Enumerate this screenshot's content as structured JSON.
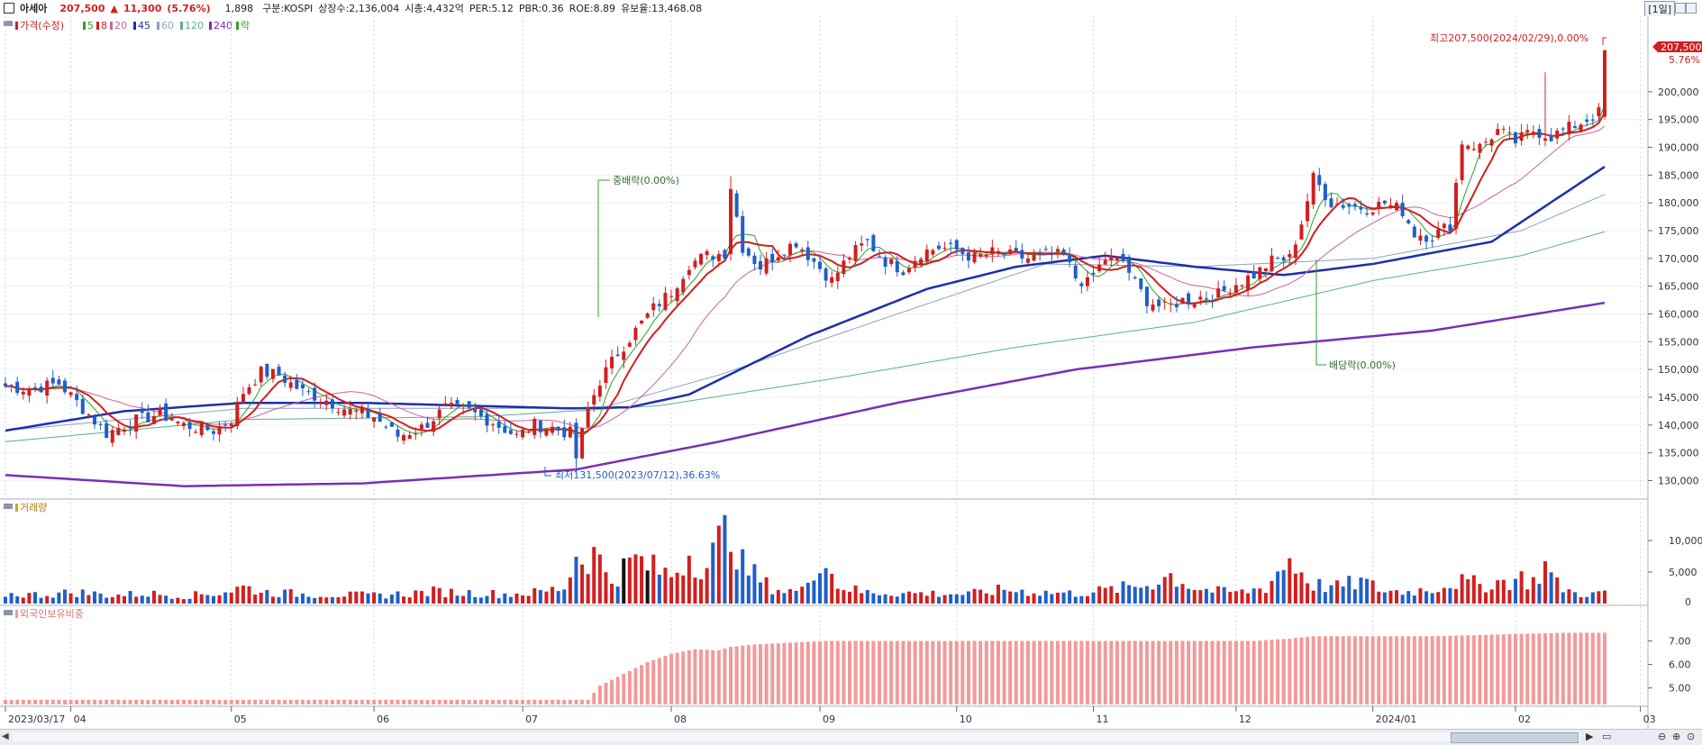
{
  "header": {
    "stock_name": "아세아",
    "price": "207,500",
    "change_arrow": "▲",
    "change": "11,300",
    "change_pct": "(5.76%)",
    "volume": "1,898",
    "market": "구분:KOSPI",
    "shares": "상장수:2,136,004",
    "market_cap": "시총:4,432억",
    "per": "PER:5.12",
    "pbr": "PBR:0.36",
    "roe": "ROE:8.89",
    "reserve": "유보율:13,468.08",
    "period": "[1일]"
  },
  "legend": {
    "price": "가격(수정)",
    "ma5": "5",
    "ma8": "8",
    "ma20": "20",
    "ma45": "45",
    "ma60": "60",
    "ma120": "120",
    "ma240": "240",
    "ex": "락"
  },
  "panels": {
    "volume_title": "거래량",
    "foreign_title": "외국인보유비중"
  },
  "annotations": {
    "high": "최고207,500(2024/02/29),0.00%",
    "low": "최저131,500(2023/07/12),36.63%",
    "ex1": "중배락(0.00%)",
    "ex2": "배당락(0.00%)",
    "last_price": "207,500",
    "last_pct": "5.76%"
  },
  "colors": {
    "up": "#d11f1f",
    "down": "#1f5fc8",
    "ma5": "#2e9e2e",
    "ma8": "#d11f1f",
    "ma20": "#c7659c",
    "ma45": "#1c2fae",
    "ma60": "#8aa3c2",
    "ma120": "#5fae8c",
    "ma240": "#7a2fb5",
    "foreign": "#f29a9a"
  },
  "chart_data": {
    "type": "candlestick",
    "y_ticks": [
      130000,
      135000,
      140000,
      145000,
      150000,
      155000,
      160000,
      165000,
      170000,
      175000,
      180000,
      185000,
      190000,
      195000,
      200000
    ],
    "y_tick_labels": [
      "130,000",
      "135,000",
      "140,000",
      "145,000",
      "150,000",
      "155,000",
      "160,000",
      "165,000",
      "170,000",
      "175,000",
      "180,000",
      "185,000",
      "190,000",
      "195,000",
      "200,000"
    ],
    "ylim": [
      127000,
      211000
    ],
    "x_labels": [
      "2023/03/17",
      "04",
      "05",
      "06",
      "07",
      "08",
      "09",
      "10",
      "11",
      "12",
      "2024/01",
      "02",
      "03"
    ],
    "x_label_days": [
      0,
      11,
      38,
      62,
      87,
      112,
      137,
      160,
      183,
      207,
      230,
      254,
      275
    ],
    "volume_ticks": [
      "5,000",
      "10,000"
    ],
    "volume_tick_values": [
      5000,
      10000
    ],
    "volume_ylim": [
      0,
      14000
    ],
    "foreign_ticks": [
      "5.00",
      "6.00",
      "7.00"
    ],
    "foreign_tick_values": [
      5.0,
      6.0,
      7.0
    ],
    "foreign_ylim": [
      4.3,
      7.9
    ],
    "close_anchors": [
      [
        0,
        147000
      ],
      [
        4,
        146500
      ],
      [
        9,
        147500
      ],
      [
        13,
        143000
      ],
      [
        17,
        138500
      ],
      [
        21,
        140500
      ],
      [
        26,
        142000
      ],
      [
        30,
        140000
      ],
      [
        35,
        139000
      ],
      [
        38,
        141000
      ],
      [
        40,
        146000
      ],
      [
        43,
        149500
      ],
      [
        46,
        149000
      ],
      [
        50,
        146000
      ],
      [
        54,
        144500
      ],
      [
        58,
        142500
      ],
      [
        62,
        141500
      ],
      [
        66,
        138000
      ],
      [
        70,
        139500
      ],
      [
        74,
        143000
      ],
      [
        78,
        142500
      ],
      [
        82,
        140500
      ],
      [
        86,
        138000
      ],
      [
        89,
        140000
      ],
      [
        92,
        139500
      ],
      [
        95,
        138500
      ],
      [
        96,
        134000
      ],
      [
        98,
        143000
      ],
      [
        100,
        148000
      ],
      [
        103,
        153000
      ],
      [
        106,
        157000
      ],
      [
        109,
        161000
      ],
      [
        112,
        164000
      ],
      [
        115,
        169000
      ],
      [
        118,
        170500
      ],
      [
        121,
        171000
      ],
      [
        122,
        183000
      ],
      [
        124,
        172000
      ],
      [
        127,
        168500
      ],
      [
        130,
        171000
      ],
      [
        133,
        173000
      ],
      [
        136,
        169500
      ],
      [
        139,
        166000
      ],
      [
        142,
        170500
      ],
      [
        145,
        173000
      ],
      [
        148,
        169500
      ],
      [
        151,
        168000
      ],
      [
        154,
        171000
      ],
      [
        157,
        172000
      ],
      [
        160,
        171500
      ],
      [
        163,
        170000
      ],
      [
        166,
        171000
      ],
      [
        169,
        170500
      ],
      [
        172,
        170000
      ],
      [
        175,
        170500
      ],
      [
        178,
        170500
      ],
      [
        180,
        166500
      ],
      [
        182,
        165500
      ],
      [
        185,
        170000
      ],
      [
        188,
        169500
      ],
      [
        190,
        165500
      ],
      [
        192,
        162500
      ],
      [
        195,
        161000
      ],
      [
        198,
        162500
      ],
      [
        201,
        163000
      ],
      [
        204,
        163500
      ],
      [
        207,
        165500
      ],
      [
        210,
        167000
      ],
      [
        213,
        169500
      ],
      [
        216,
        170000
      ],
      [
        218,
        176500
      ],
      [
        220,
        184500
      ],
      [
        223,
        180000
      ],
      [
        226,
        179500
      ],
      [
        229,
        179000
      ],
      [
        232,
        180000
      ],
      [
        235,
        178500
      ],
      [
        237,
        174500
      ],
      [
        240,
        174000
      ],
      [
        243,
        176000
      ],
      [
        245,
        191000
      ],
      [
        248,
        190000
      ],
      [
        251,
        193000
      ],
      [
        254,
        191000
      ],
      [
        257,
        193000
      ],
      [
        260,
        192000
      ],
      [
        263,
        193500
      ],
      [
        266,
        195000
      ],
      [
        268,
        196200
      ],
      [
        269,
        207500
      ]
    ],
    "volume_anchors": [
      [
        0,
        1500
      ],
      [
        6,
        1400
      ],
      [
        12,
        1800
      ],
      [
        18,
        1300
      ],
      [
        24,
        1600
      ],
      [
        30,
        1200
      ],
      [
        36,
        1700
      ],
      [
        40,
        2600
      ],
      [
        44,
        1800
      ],
      [
        50,
        1500
      ],
      [
        56,
        1400
      ],
      [
        62,
        1300
      ],
      [
        68,
        1600
      ],
      [
        72,
        1900
      ],
      [
        78,
        1700
      ],
      [
        84,
        1500
      ],
      [
        90,
        1800
      ],
      [
        94,
        2600
      ],
      [
        96,
        7500
      ],
      [
        99,
        7800
      ],
      [
        102,
        4000
      ],
      [
        106,
        7000
      ],
      [
        109,
        5500
      ],
      [
        112,
        4500
      ],
      [
        115,
        8000
      ],
      [
        118,
        6000
      ],
      [
        121,
        11000
      ],
      [
        122,
        13000
      ],
      [
        124,
        6000
      ],
      [
        128,
        3000
      ],
      [
        131,
        2000
      ],
      [
        134,
        2000
      ],
      [
        137,
        8000
      ],
      [
        140,
        3000
      ],
      [
        144,
        1800
      ],
      [
        150,
        1700
      ],
      [
        156,
        1600
      ],
      [
        162,
        1500
      ],
      [
        168,
        2200
      ],
      [
        174,
        1800
      ],
      [
        180,
        1600
      ],
      [
        186,
        2200
      ],
      [
        192,
        3000
      ],
      [
        196,
        4500
      ],
      [
        200,
        2500
      ],
      [
        204,
        1900
      ],
      [
        208,
        1800
      ],
      [
        212,
        2600
      ],
      [
        214,
        5000
      ],
      [
        216,
        7000
      ],
      [
        218,
        5000
      ],
      [
        220,
        3000
      ],
      [
        224,
        2600
      ],
      [
        228,
        3500
      ],
      [
        232,
        2000
      ],
      [
        236,
        1900
      ],
      [
        240,
        2400
      ],
      [
        244,
        3500
      ],
      [
        248,
        3000
      ],
      [
        252,
        3500
      ],
      [
        255,
        4000
      ],
      [
        257,
        3500
      ],
      [
        259,
        6000
      ],
      [
        261,
        3000
      ],
      [
        264,
        1600
      ],
      [
        268,
        1500
      ],
      [
        269,
        1900
      ]
    ],
    "foreign_anchors": [
      [
        0,
        4.5
      ],
      [
        40,
        4.5
      ],
      [
        80,
        4.5
      ],
      [
        98,
        4.5
      ],
      [
        100,
        5.1
      ],
      [
        104,
        5.6
      ],
      [
        108,
        6.1
      ],
      [
        112,
        6.45
      ],
      [
        116,
        6.65
      ],
      [
        120,
        6.6
      ],
      [
        122,
        6.75
      ],
      [
        126,
        6.85
      ],
      [
        130,
        6.9
      ],
      [
        134,
        6.95
      ],
      [
        138,
        7.0
      ],
      [
        150,
        7.0
      ],
      [
        180,
        7.0
      ],
      [
        210,
        7.0
      ],
      [
        216,
        7.1
      ],
      [
        220,
        7.2
      ],
      [
        240,
        7.2
      ],
      [
        255,
        7.3
      ],
      [
        262,
        7.35
      ],
      [
        269,
        7.35
      ]
    ]
  }
}
